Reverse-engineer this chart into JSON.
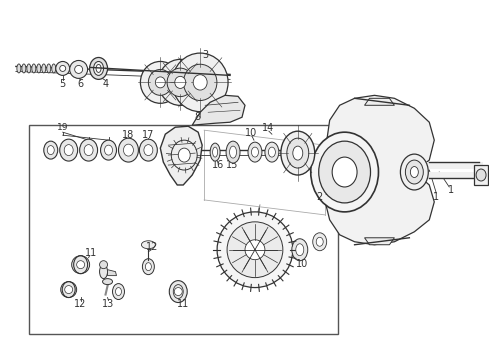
{
  "background_color": "#ffffff",
  "line_color": "#333333",
  "border_color": "#444444",
  "figure_width": 4.9,
  "figure_height": 3.6,
  "dpi": 100
}
